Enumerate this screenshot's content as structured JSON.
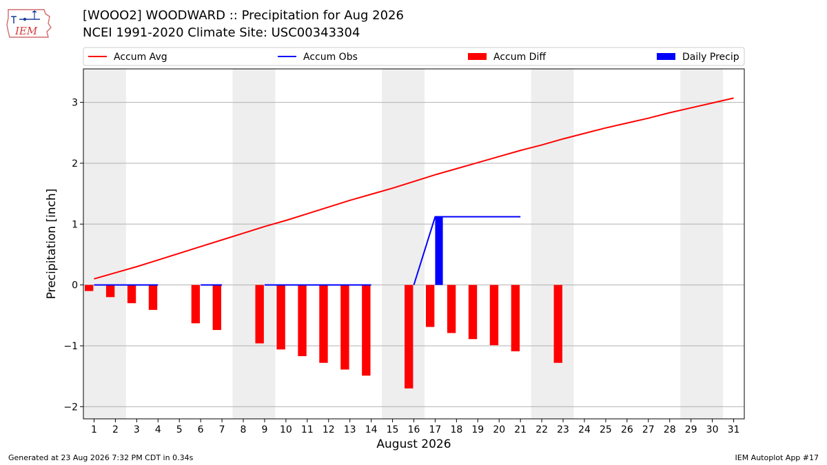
{
  "header": {
    "title": "[WOOO2] WOODWARD :: Precipitation for Aug 2026",
    "subtitle": "NCEI 1991-2020 Climate Site: USC00343304",
    "logo_text": "IEM"
  },
  "footer": {
    "left": "Generated at 23 Aug 2026 7:32 PM CDT in 0.34s",
    "right": "IEM Autoplot App #17"
  },
  "colors": {
    "accum_avg": "#ff0000",
    "accum_obs": "#0000ff",
    "accum_diff": "#ff0000",
    "daily_precip": "#0000ff",
    "weekend_shade": "#eeeeee",
    "grid": "#b0b0b0"
  },
  "chart_data": {
    "type": "bar",
    "title": "[WOOO2] WOODWARD :: Precipitation for Aug 2026",
    "xlabel": "August 2026",
    "ylabel": "Precipitation [inch]",
    "x": [
      1,
      2,
      3,
      4,
      5,
      6,
      7,
      8,
      9,
      10,
      11,
      12,
      13,
      14,
      15,
      16,
      17,
      18,
      19,
      20,
      21,
      22,
      23,
      24,
      25,
      26,
      27,
      28,
      29,
      30,
      31
    ],
    "xlim": [
      0.5,
      31.5
    ],
    "ylim": [
      -2.2,
      3.55
    ],
    "yticks": [
      -2,
      -1,
      0,
      1,
      2,
      3
    ],
    "grid": "horizontal",
    "legend_position": "top",
    "weekend_shading": [
      [
        1,
        2
      ],
      [
        8,
        9
      ],
      [
        15,
        16
      ],
      [
        22,
        23
      ],
      [
        29,
        30
      ]
    ],
    "series": [
      {
        "name": "Accum Avg",
        "type": "line",
        "x": [
          1,
          2,
          3,
          4,
          5,
          6,
          7,
          8,
          9,
          10,
          11,
          12,
          13,
          14,
          15,
          16,
          17,
          18,
          19,
          20,
          21,
          22,
          23,
          24,
          25,
          26,
          27,
          28,
          29,
          30,
          31
        ],
        "values": [
          0.1,
          0.2,
          0.3,
          0.41,
          0.52,
          0.63,
          0.74,
          0.85,
          0.96,
          1.06,
          1.17,
          1.28,
          1.39,
          1.49,
          1.59,
          1.7,
          1.81,
          1.91,
          2.01,
          2.11,
          2.21,
          2.3,
          2.4,
          2.49,
          2.58,
          2.66,
          2.74,
          2.83,
          2.91,
          2.99,
          3.07
        ]
      },
      {
        "name": "Accum Obs",
        "type": "line",
        "segments": [
          {
            "x": [
              1,
              2,
              3,
              4
            ],
            "values": [
              0,
              0,
              0,
              0
            ]
          },
          {
            "x": [
              6,
              7
            ],
            "values": [
              0,
              0
            ]
          },
          {
            "x": [
              9,
              10,
              11,
              12,
              13,
              14
            ],
            "values": [
              0,
              0,
              0,
              0,
              0,
              0
            ]
          },
          {
            "x": [
              16,
              17,
              18,
              19,
              20,
              21
            ],
            "values": [
              0,
              1.12,
              1.12,
              1.12,
              1.12,
              1.12
            ]
          }
        ]
      },
      {
        "name": "Accum Diff",
        "type": "bar",
        "x": [
          1,
          2,
          3,
          4,
          6,
          7,
          9,
          10,
          11,
          12,
          13,
          14,
          16,
          17,
          18,
          19,
          20,
          21,
          23
        ],
        "values": [
          -0.1,
          -0.2,
          -0.3,
          -0.41,
          -0.63,
          -0.74,
          -0.96,
          -1.06,
          -1.17,
          -1.28,
          -1.39,
          -1.49,
          -1.7,
          -0.69,
          -0.79,
          -0.89,
          -0.99,
          -1.09,
          -1.28
        ]
      },
      {
        "name": "Daily Precip",
        "type": "bar",
        "x": [
          17
        ],
        "values": [
          1.12
        ]
      }
    ]
  }
}
